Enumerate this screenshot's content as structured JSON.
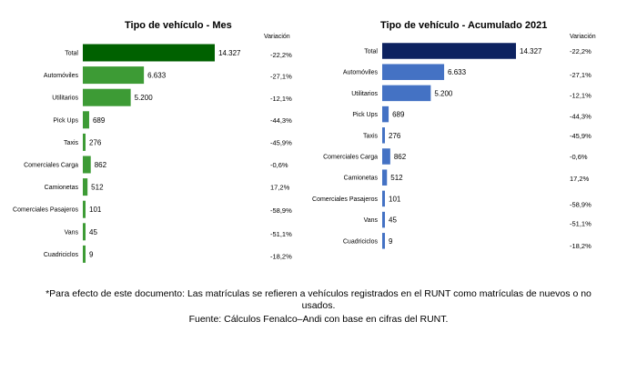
{
  "chart_data": [
    {
      "type": "bar",
      "orientation": "horizontal",
      "title": "Tipo de vehículo - Mes",
      "variation_header": "Variación",
      "categories": [
        "Total",
        "Automóviles",
        "Utilitarios",
        "Pick Ups",
        "Taxis",
        "Comerciales Carga",
        "Camionetas",
        "Comerciales Pasajeros",
        "Vans",
        "Cuadriciclos"
      ],
      "values": [
        14327,
        6633,
        5200,
        689,
        276,
        862,
        512,
        101,
        45,
        9
      ],
      "value_labels": [
        "14.327",
        "6.633",
        "5.200",
        "689",
        "276",
        "862",
        "512",
        "101",
        "45",
        "9"
      ],
      "variation": [
        "-22,2%",
        "-27,1%",
        "-12,1%",
        "-44,3%",
        "-45,9%",
        "-0,6%",
        "17,2%",
        "-58,9%",
        "-51,1%",
        "-18,2%"
      ],
      "colors": {
        "total": "#006100",
        "bars": "#3d9b35"
      }
    },
    {
      "type": "bar",
      "orientation": "horizontal",
      "title": "Tipo de vehículo - Acumulado 2021",
      "variation_header": "Variación",
      "categories": [
        "Total",
        "Automóviles",
        "Utilitarios",
        "Pick Ups",
        "Taxis",
        "Comerciales Carga",
        "Camionetas",
        "Comerciales Pasajeros",
        "Vans",
        "Cuadriciclos"
      ],
      "values": [
        14327,
        6633,
        5200,
        689,
        276,
        862,
        512,
        101,
        45,
        9
      ],
      "value_labels": [
        "14.327",
        "6.633",
        "5.200",
        "689",
        "276",
        "862",
        "512",
        "101",
        "45",
        "9"
      ],
      "variation": [
        "-22,2%",
        "-27,1%",
        "-12,1%",
        "-44,3%",
        "-45,9%",
        "-0,6%",
        "17,2%",
        "-58,9%",
        "-51,1%",
        "-18,2%"
      ],
      "colors": {
        "total": "#0d2260",
        "bars": "#4472c4"
      }
    }
  ],
  "footnote": {
    "line1": "*Para efecto de este documento: Las matrículas se refieren a vehículos registrados en el RUNT como matrículas de nuevos o no usados.",
    "line2": "Fuente: Cálculos Fenalco–Andi con base en cifras del RUNT."
  }
}
